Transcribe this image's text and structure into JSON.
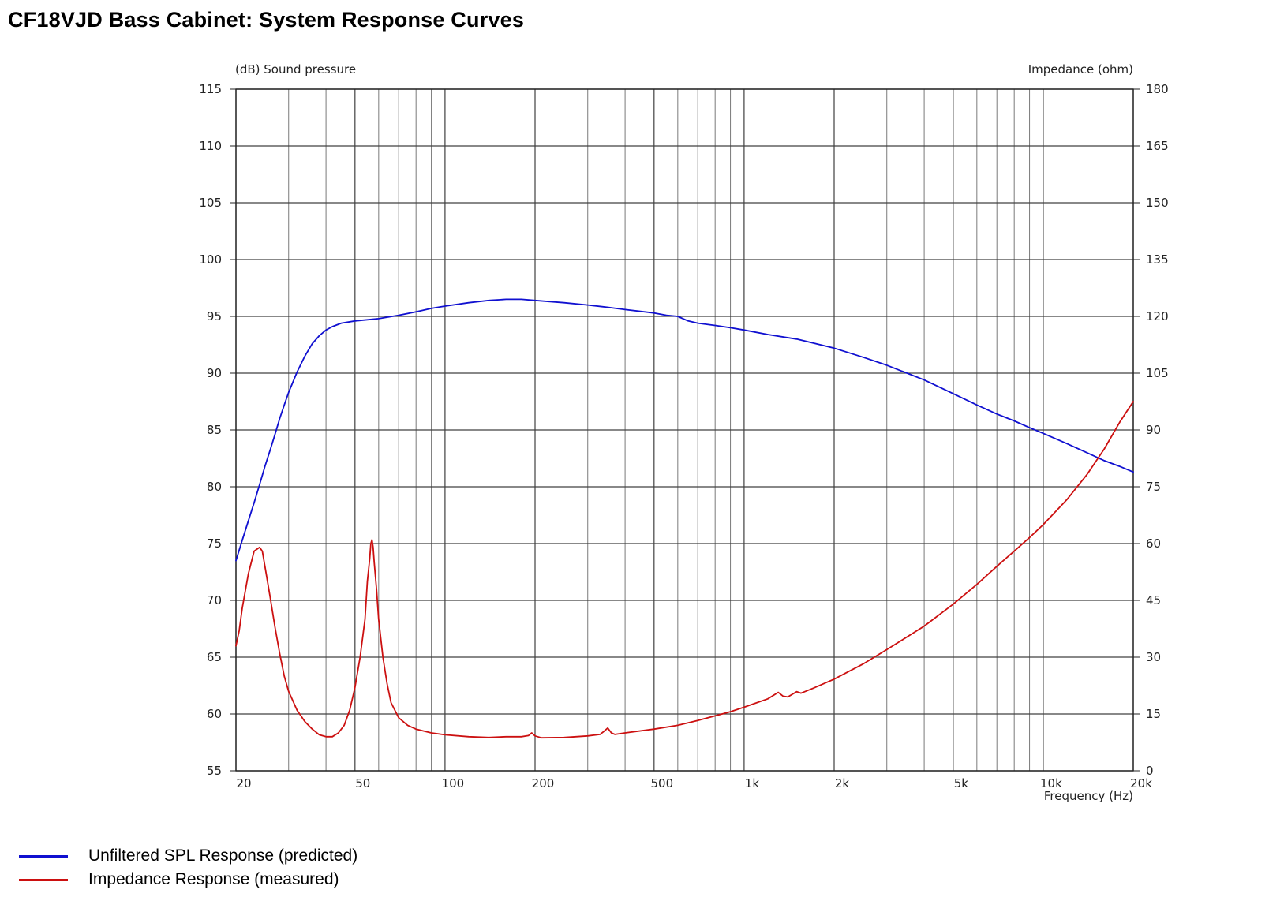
{
  "page": {
    "title": "CF18VJD Bass Cabinet: System Response Curves"
  },
  "colors": {
    "spl": "#1010d0",
    "impedance": "#cc1010",
    "grid_major": "#404040",
    "grid_minor": "#7a7a7a",
    "frame": "#202020"
  },
  "chart_data": {
    "type": "line",
    "title": "CF18VJD Bass Cabinet: System Response Curves",
    "x_scale": "log",
    "xlim": [
      20,
      20000
    ],
    "xlabel": "Frequency  (Hz)",
    "x_tick_labels": [
      {
        "value": 20,
        "label": "20"
      },
      {
        "value": 50,
        "label": "50"
      },
      {
        "value": 100,
        "label": "100"
      },
      {
        "value": 200,
        "label": "200"
      },
      {
        "value": 500,
        "label": "500"
      },
      {
        "value": 1000,
        "label": "1k"
      },
      {
        "value": 2000,
        "label": "2k"
      },
      {
        "value": 5000,
        "label": "5k"
      },
      {
        "value": 10000,
        "label": "10k"
      },
      {
        "value": 20000,
        "label": "20k"
      }
    ],
    "x_gridlines": [
      20,
      30,
      40,
      50,
      60,
      70,
      80,
      90,
      100,
      200,
      300,
      400,
      500,
      600,
      700,
      800,
      900,
      1000,
      2000,
      3000,
      4000,
      5000,
      6000,
      7000,
      8000,
      9000,
      10000,
      20000
    ],
    "y_left": {
      "label": "(dB)  Sound pressure",
      "range": [
        55,
        115
      ],
      "ticks": [
        55,
        60,
        65,
        70,
        75,
        80,
        85,
        90,
        95,
        100,
        105,
        110,
        115
      ]
    },
    "y_right": {
      "label": "Impedance  (ohm)",
      "range": [
        0,
        180
      ],
      "ticks": [
        0,
        15,
        30,
        45,
        60,
        75,
        90,
        105,
        120,
        135,
        150,
        165,
        180
      ]
    },
    "grid": true,
    "legend_position": "bottom-left",
    "series": [
      {
        "name": "Unfiltered SPL Response (predicted)",
        "axis": "left",
        "color": "#1010d0",
        "points": [
          [
            20,
            73.5
          ],
          [
            21,
            75.3
          ],
          [
            22,
            77.0
          ],
          [
            23,
            78.6
          ],
          [
            24,
            80.2
          ],
          [
            25,
            81.8
          ],
          [
            26,
            83.2
          ],
          [
            27,
            84.6
          ],
          [
            28,
            86.0
          ],
          [
            29,
            87.2
          ],
          [
            30,
            88.3
          ],
          [
            32,
            90.1
          ],
          [
            34,
            91.5
          ],
          [
            36,
            92.6
          ],
          [
            38,
            93.3
          ],
          [
            40,
            93.8
          ],
          [
            42,
            94.1
          ],
          [
            45,
            94.4
          ],
          [
            50,
            94.6
          ],
          [
            55,
            94.7
          ],
          [
            60,
            94.8
          ],
          [
            70,
            95.1
          ],
          [
            80,
            95.4
          ],
          [
            90,
            95.7
          ],
          [
            100,
            95.9
          ],
          [
            120,
            96.2
          ],
          [
            140,
            96.4
          ],
          [
            160,
            96.5
          ],
          [
            180,
            96.5
          ],
          [
            200,
            96.4
          ],
          [
            250,
            96.2
          ],
          [
            300,
            96.0
          ],
          [
            350,
            95.8
          ],
          [
            400,
            95.6
          ],
          [
            500,
            95.3
          ],
          [
            550,
            95.1
          ],
          [
            600,
            95.0
          ],
          [
            650,
            94.6
          ],
          [
            700,
            94.4
          ],
          [
            800,
            94.2
          ],
          [
            900,
            94.0
          ],
          [
            1000,
            93.8
          ],
          [
            1200,
            93.4
          ],
          [
            1500,
            93.0
          ],
          [
            2000,
            92.2
          ],
          [
            2500,
            91.4
          ],
          [
            3000,
            90.7
          ],
          [
            4000,
            89.4
          ],
          [
            5000,
            88.2
          ],
          [
            6000,
            87.2
          ],
          [
            7000,
            86.4
          ],
          [
            8000,
            85.8
          ],
          [
            9000,
            85.2
          ],
          [
            10000,
            84.7
          ],
          [
            12000,
            83.8
          ],
          [
            14000,
            83.0
          ],
          [
            16000,
            82.3
          ],
          [
            18000,
            81.8
          ],
          [
            20000,
            81.3
          ]
        ]
      },
      {
        "name": "Impedance Response (measured)",
        "axis": "right",
        "color": "#cc1010",
        "points": [
          [
            20,
            33
          ],
          [
            20.5,
            37
          ],
          [
            21,
            43
          ],
          [
            22,
            52
          ],
          [
            23,
            58
          ],
          [
            24,
            59
          ],
          [
            24.5,
            58
          ],
          [
            25,
            54
          ],
          [
            26,
            46
          ],
          [
            27,
            38
          ],
          [
            28,
            31
          ],
          [
            29,
            25
          ],
          [
            30,
            21
          ],
          [
            32,
            16
          ],
          [
            34,
            13
          ],
          [
            36,
            11
          ],
          [
            38,
            9.5
          ],
          [
            40,
            9
          ],
          [
            42,
            9
          ],
          [
            44,
            10
          ],
          [
            46,
            12
          ],
          [
            48,
            16
          ],
          [
            50,
            22
          ],
          [
            52,
            30
          ],
          [
            54,
            40
          ],
          [
            55,
            50
          ],
          [
            56,
            56
          ],
          [
            56.5,
            60
          ],
          [
            57,
            61
          ],
          [
            57.5,
            59
          ],
          [
            58,
            55
          ],
          [
            59,
            48
          ],
          [
            60,
            40
          ],
          [
            62,
            30
          ],
          [
            64,
            23
          ],
          [
            66,
            18
          ],
          [
            70,
            14
          ],
          [
            75,
            12
          ],
          [
            80,
            11
          ],
          [
            90,
            10
          ],
          [
            100,
            9.5
          ],
          [
            120,
            9
          ],
          [
            140,
            8.8
          ],
          [
            160,
            9
          ],
          [
            180,
            9
          ],
          [
            190,
            9.3
          ],
          [
            195,
            10
          ],
          [
            200,
            9.2
          ],
          [
            210,
            8.7
          ],
          [
            250,
            8.8
          ],
          [
            300,
            9.2
          ],
          [
            330,
            9.6
          ],
          [
            340,
            10.4
          ],
          [
            350,
            11.3
          ],
          [
            360,
            10
          ],
          [
            370,
            9.6
          ],
          [
            400,
            10
          ],
          [
            500,
            11
          ],
          [
            600,
            12
          ],
          [
            700,
            13.3
          ],
          [
            800,
            14.5
          ],
          [
            900,
            15.6
          ],
          [
            1000,
            16.8
          ],
          [
            1200,
            19.0
          ],
          [
            1300,
            20.7
          ],
          [
            1350,
            19.7
          ],
          [
            1400,
            19.5
          ],
          [
            1500,
            20.9
          ],
          [
            1550,
            20.5
          ],
          [
            1700,
            21.8
          ],
          [
            2000,
            24.2
          ],
          [
            2500,
            28.2
          ],
          [
            3000,
            32.0
          ],
          [
            4000,
            38.2
          ],
          [
            5000,
            44.0
          ],
          [
            6000,
            49.2
          ],
          [
            7000,
            54.0
          ],
          [
            8000,
            58.0
          ],
          [
            9000,
            61.6
          ],
          [
            10000,
            65.0
          ],
          [
            12000,
            71.6
          ],
          [
            14000,
            78.2
          ],
          [
            16000,
            85.0
          ],
          [
            18000,
            92.0
          ],
          [
            20000,
            97.5
          ]
        ]
      }
    ]
  }
}
